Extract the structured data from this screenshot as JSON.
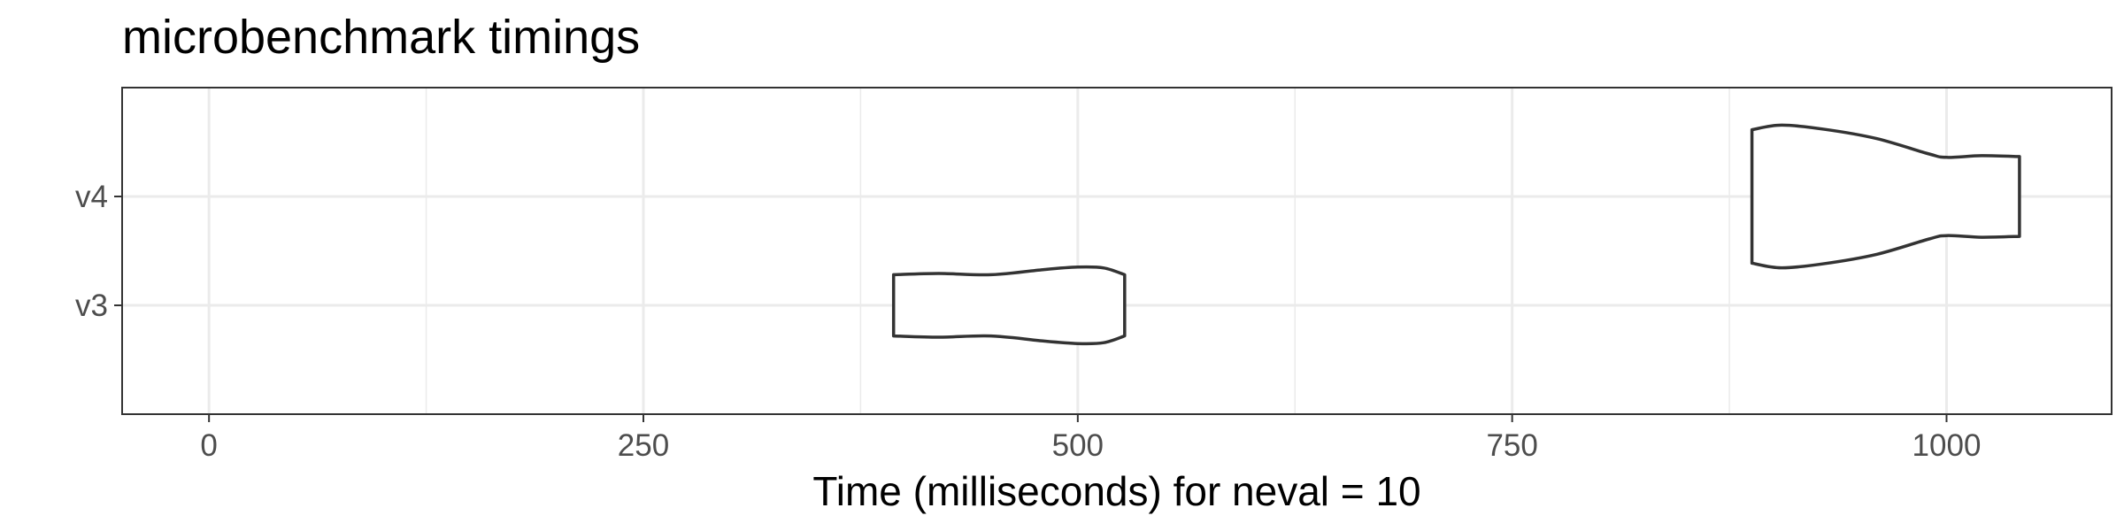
{
  "chart_data": {
    "type": "violin",
    "title": "microbenchmark timings",
    "xlabel": "Time (milliseconds) for neval = 10",
    "ylabel": "",
    "xlim": [
      -50,
      1095
    ],
    "x_ticks": [
      0,
      250,
      500,
      750,
      1000
    ],
    "x_minor_ticks": [
      125,
      375,
      625,
      875
    ],
    "categories": [
      "v3",
      "v4"
    ],
    "grid": true,
    "colors": {
      "outline": "#333333",
      "grid": "#ebebeb",
      "panel_border": "#333333",
      "tick_text": "#4d4d4d"
    },
    "series": [
      {
        "category": "v3",
        "min": 394,
        "max": 527,
        "profile": [
          [
            394,
            0.72
          ],
          [
            420,
            0.75
          ],
          [
            450,
            0.72
          ],
          [
            480,
            0.84
          ],
          [
            500,
            0.9
          ],
          [
            515,
            0.88
          ],
          [
            527,
            0.72
          ]
        ]
      },
      {
        "category": "v4",
        "min": 888,
        "max": 1042,
        "profile": [
          [
            888,
            1.57
          ],
          [
            905,
            1.68
          ],
          [
            930,
            1.58
          ],
          [
            960,
            1.36
          ],
          [
            990,
            1.0
          ],
          [
            1000,
            0.92
          ],
          [
            1020,
            0.96
          ],
          [
            1042,
            0.94
          ]
        ]
      }
    ]
  }
}
